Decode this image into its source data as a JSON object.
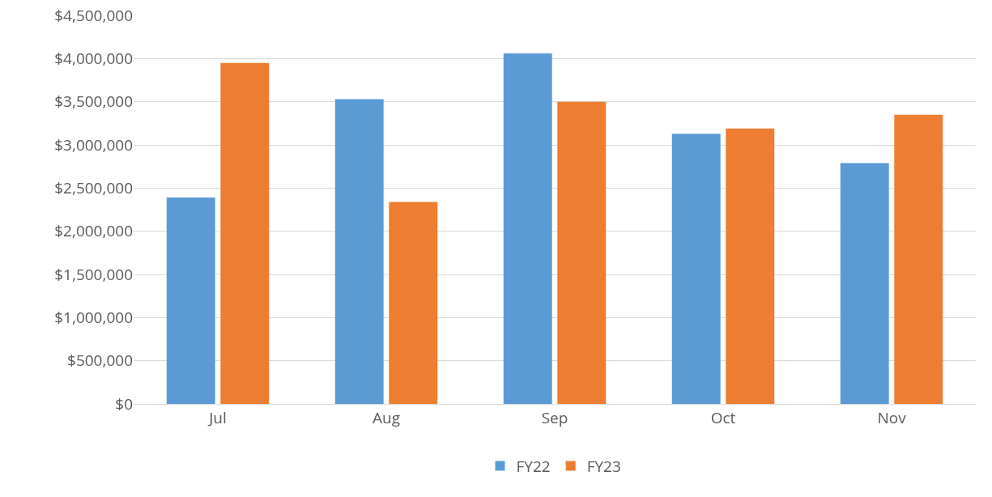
{
  "chart_data": {
    "type": "bar",
    "categories": [
      "Jul",
      "Aug",
      "Sep",
      "Oct",
      "Nov"
    ],
    "series": [
      {
        "name": "FY22",
        "color": "#5b9bd5",
        "values": [
          2390000,
          3530000,
          4060000,
          3130000,
          2790000
        ]
      },
      {
        "name": "FY23",
        "color": "#ed7d31",
        "values": [
          3950000,
          2340000,
          3500000,
          3190000,
          3350000
        ]
      }
    ],
    "ylim": [
      0,
      4500000
    ],
    "yticks": [
      {
        "value": 0,
        "label": "$0"
      },
      {
        "value": 500000,
        "label": "$500,000"
      },
      {
        "value": 1000000,
        "label": "$1,000,000"
      },
      {
        "value": 1500000,
        "label": "$1,500,000"
      },
      {
        "value": 2000000,
        "label": "$2,000,000"
      },
      {
        "value": 2500000,
        "label": "$2,500,000"
      },
      {
        "value": 3000000,
        "label": "$3,000,000"
      },
      {
        "value": 3500000,
        "label": "$3,500,000"
      },
      {
        "value": 4000000,
        "label": "$4,000,000"
      },
      {
        "value": 4500000,
        "label": "$4,500,000"
      }
    ],
    "grid": "y",
    "legend": "bottom"
  }
}
